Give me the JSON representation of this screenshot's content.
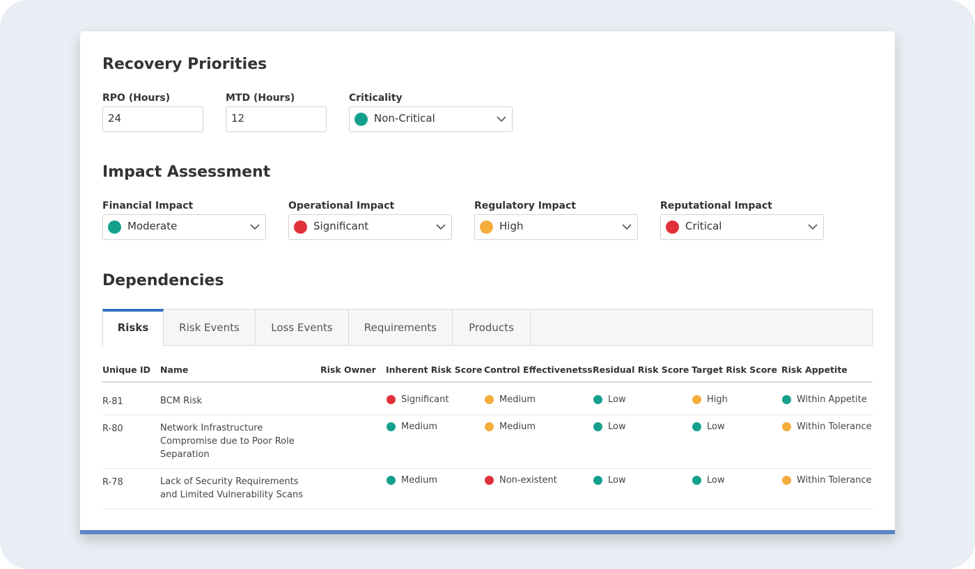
{
  "recovery": {
    "title": "Recovery Priorities",
    "fields": [
      {
        "label": "RPO (Hours)",
        "value": "24"
      },
      {
        "label": "MTD (Hours)",
        "value": "12"
      },
      {
        "label": "Criticality",
        "value": "Non-Critical",
        "color": "#14a08c"
      }
    ]
  },
  "impact": {
    "title": "Impact Assessment",
    "fields": [
      {
        "label": "Financial Impact",
        "value": "Moderate",
        "color": "#14a08c"
      },
      {
        "label": "Operational Impact",
        "value": "Significant",
        "color": "#e0313b"
      },
      {
        "label": "Regulatory Impact",
        "value": "High",
        "color": "#f5ad3b"
      },
      {
        "label": "Reputational Impact",
        "value": "Critical",
        "color": "#e0313b"
      }
    ]
  },
  "dependencies": {
    "title": "Dependencies",
    "tabs": [
      "Risks",
      "Risk Events",
      "Loss Events",
      "Requirements",
      "Products"
    ],
    "active_tab": 0,
    "table": {
      "columns": [
        "Unique ID",
        "Name",
        "Risk Owner",
        "Inherent Risk Score",
        "Control Effectivenetss",
        "Residual Risk Score",
        "Target Risk Score",
        "Risk Appetite"
      ],
      "rows": [
        {
          "id": "R-81",
          "name": "BCM Risk",
          "inherent": {
            "text": "Significant",
            "color": "#e0313b"
          },
          "control": {
            "text": "Medium",
            "color": "#f5ad3b"
          },
          "residual": {
            "text": "Low",
            "color": "#14a08c"
          },
          "target": {
            "text": "High",
            "color": "#f5ad3b"
          },
          "appetite": {
            "text": "Within Appetite",
            "color": "#14a08c"
          }
        },
        {
          "id": "R-80",
          "name": "Network Infrastructure Compromise due to Poor Role Separation",
          "inherent": {
            "text": "Medium",
            "color": "#14a08c"
          },
          "control": {
            "text": "Medium",
            "color": "#f5ad3b"
          },
          "residual": {
            "text": "Low",
            "color": "#14a08c"
          },
          "target": {
            "text": "Low",
            "color": "#14a08c"
          },
          "appetite": {
            "text": "Within Tolerance",
            "color": "#f5ad3b"
          }
        },
        {
          "id": "R-78",
          "name": "Lack of Security Requirements and Limited Vulnerability Scans",
          "inherent": {
            "text": "Medium",
            "color": "#14a08c"
          },
          "control": {
            "text": "Non-existent",
            "color": "#e0313b"
          },
          "residual": {
            "text": "Low",
            "color": "#14a08c"
          },
          "target": {
            "text": "Low",
            "color": "#14a08c"
          },
          "appetite": {
            "text": "Within Tolerance",
            "color": "#f5ad3b"
          }
        }
      ]
    }
  }
}
